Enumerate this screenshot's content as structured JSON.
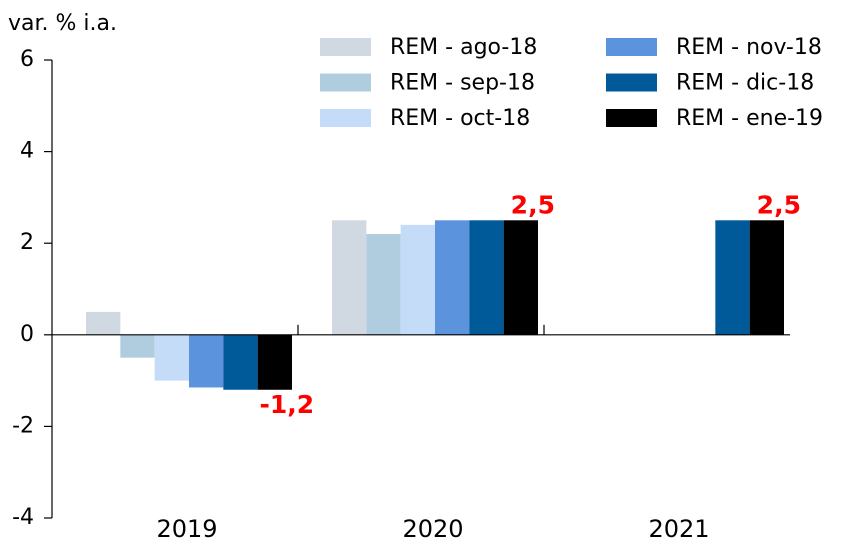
{
  "chart_data": {
    "type": "bar",
    "ylabel": "var. % i.a.",
    "categories": [
      "2019",
      "2020",
      "2021"
    ],
    "series": [
      {
        "name": "REM - ago-18",
        "color": "#d0d8e2",
        "values": [
          0.5,
          2.5,
          null
        ]
      },
      {
        "name": "REM - sep-18",
        "color": "#b0cde0",
        "values": [
          -0.5,
          2.2,
          null
        ]
      },
      {
        "name": "REM - oct-18",
        "color": "#c5dcf8",
        "values": [
          -1.0,
          2.4,
          null
        ]
      },
      {
        "name": "REM - nov-18",
        "color": "#5b93dc",
        "values": [
          -1.15,
          2.5,
          null
        ]
      },
      {
        "name": "REM - dic-18",
        "color": "#005a9a",
        "values": [
          -1.2,
          2.5,
          2.5
        ]
      },
      {
        "name": "REM - ene-19",
        "color": "#000000",
        "values": [
          -1.2,
          2.5,
          2.5
        ],
        "value_labels": [
          "-1,2",
          "2,5",
          "2,5"
        ],
        "label_color": "#ff0000"
      }
    ],
    "ylim": [
      -4,
      6
    ],
    "yticks": [
      -4,
      -2,
      0,
      2,
      4,
      6
    ],
    "legend": "top-right",
    "grid": false
  }
}
